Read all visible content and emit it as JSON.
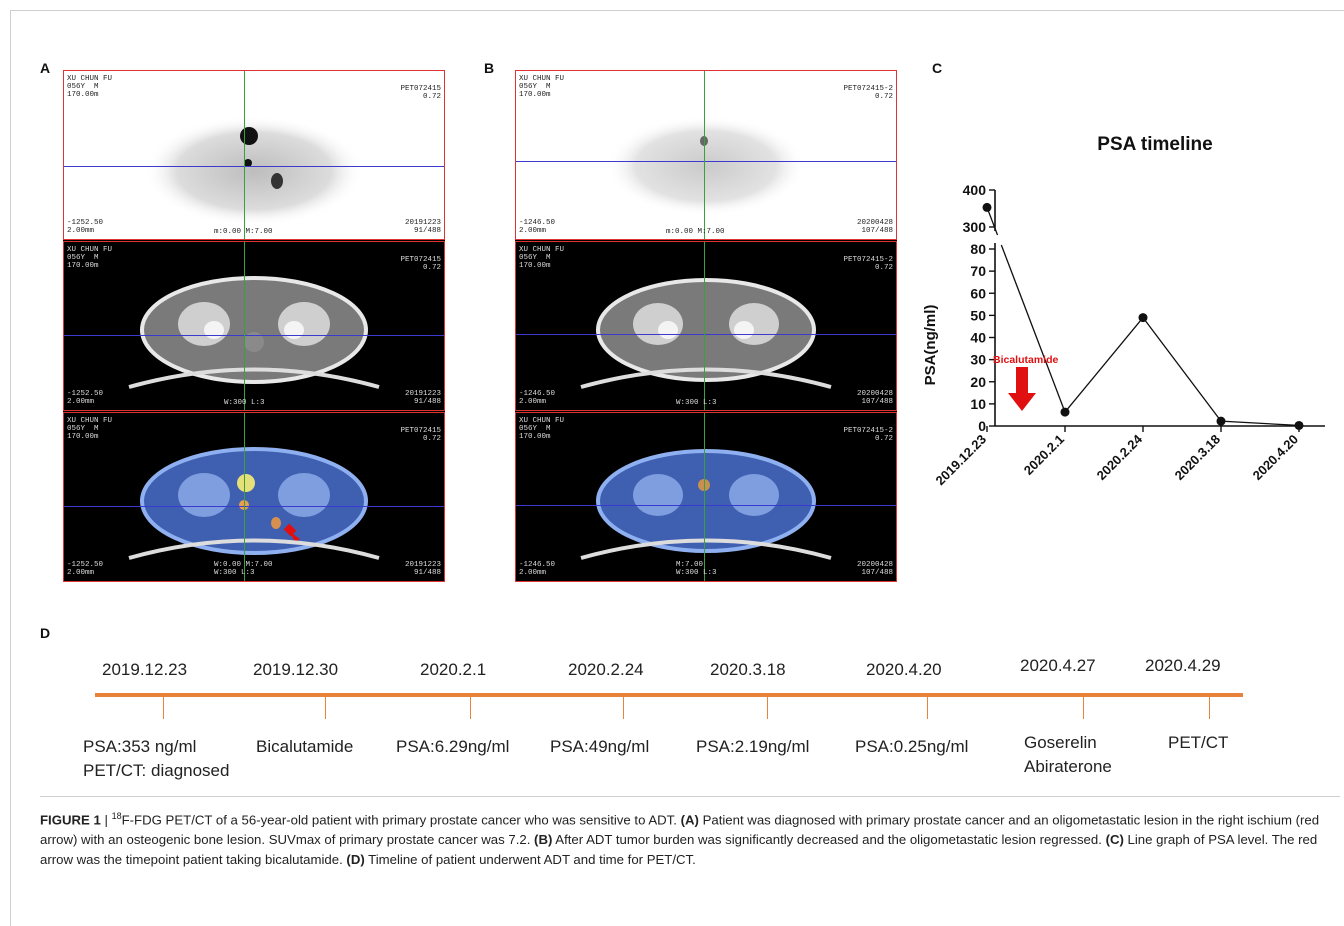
{
  "panels": {
    "a": "A",
    "b": "B",
    "c": "C",
    "d": "D"
  },
  "scan_a": {
    "header_left": [
      "XU CHUN FU",
      "056Y  M",
      "170.00m"
    ],
    "header_right": [
      "PET072415",
      "0.72"
    ],
    "footer_left": [
      "-1252.50",
      "2.00mm"
    ],
    "footer_right": [
      "20191223",
      "91/488"
    ],
    "pet_center": "m:0.00 M:7.00",
    "ct_center": "W:300 L:3",
    "fused_center_top": "W:0.00 M:7.00",
    "fused_center_bottom": "W:300 L:3"
  },
  "scan_b": {
    "header_left": [
      "XU CHUN FU",
      "056Y  M",
      "170.00m"
    ],
    "header_right": [
      "PET072415-2",
      "0.72"
    ],
    "footer_left": [
      "-1246.50",
      "2.00mm"
    ],
    "footer_right": [
      "20200428",
      "107/488"
    ],
    "pet_center": "m:0.00 M:7.00",
    "ct_center": "W:300 L:3",
    "fused_center_top": "M:7.00",
    "fused_center_bottom": "W:300 L:3"
  },
  "chart_data": {
    "type": "line",
    "title": "PSA timeline",
    "ylabel": "PSA(ng/ml)",
    "xlabel": "",
    "categories": [
      "2019.12.23",
      "2020.2.1",
      "2020.2.24",
      "2020.3.18",
      "2020.4.20"
    ],
    "x_positions": [
      0,
      1,
      2,
      3,
      4
    ],
    "values": [
      353,
      6.29,
      49,
      2.19,
      0.25
    ],
    "y_axis_lower": {
      "ticks": [
        0,
        10,
        20,
        30,
        40,
        50,
        60,
        70,
        80
      ],
      "range": [
        0,
        80
      ]
    },
    "y_axis_upper": {
      "ticks": [
        300,
        400
      ],
      "range": [
        300,
        400
      ]
    },
    "annotation": {
      "text": "Bicalutamide",
      "color": "#e01010"
    }
  },
  "timeline": {
    "line_color": "#e8823a",
    "events": [
      {
        "date": "2019.12.23",
        "lines": [
          "PSA:353 ng/ml",
          "PET/CT: diagnosed"
        ]
      },
      {
        "date": "2019.12.30",
        "lines": [
          "Bicalutamide"
        ]
      },
      {
        "date": "2020.2.1",
        "lines": [
          "PSA:6.29ng/ml"
        ]
      },
      {
        "date": "2020.2.24",
        "lines": [
          "PSA:49ng/ml"
        ]
      },
      {
        "date": "2020.3.18",
        "lines": [
          "PSA:2.19ng/ml"
        ]
      },
      {
        "date": "2020.4.20",
        "lines": [
          "PSA:0.25ng/ml"
        ]
      },
      {
        "date": "2020.4.27",
        "lines": [
          "Goserelin",
          "Abiraterone"
        ]
      },
      {
        "date": "2020.4.29",
        "lines": [
          "PET/CT"
        ]
      }
    ]
  },
  "caption": {
    "fig_label": "FIGURE 1",
    "sep": " | ",
    "sup": "18",
    "intro": "F-FDG PET/CT of a 56-year-old patient with primary prostate cancer who was sensitive to ADT.",
    "a_label": "(A)",
    "a_text": "Patient was diagnosed with primary prostate cancer and an oligometastatic lesion in the right ischium (red arrow) with an osteogenic bone lesion. SUVmax of primary prostate cancer was 7.2.",
    "b_label": "(B)",
    "b_text": "After ADT tumor burden was significantly decreased and the oligometastatic lesion regressed.",
    "c_label": "(C)",
    "c_text": "Line graph of PSA level. The red arrow was the timepoint patient taking bicalutamide.",
    "d_label": "(D)",
    "d_text": "Timeline of patient underwent ADT and time for PET/CT."
  }
}
